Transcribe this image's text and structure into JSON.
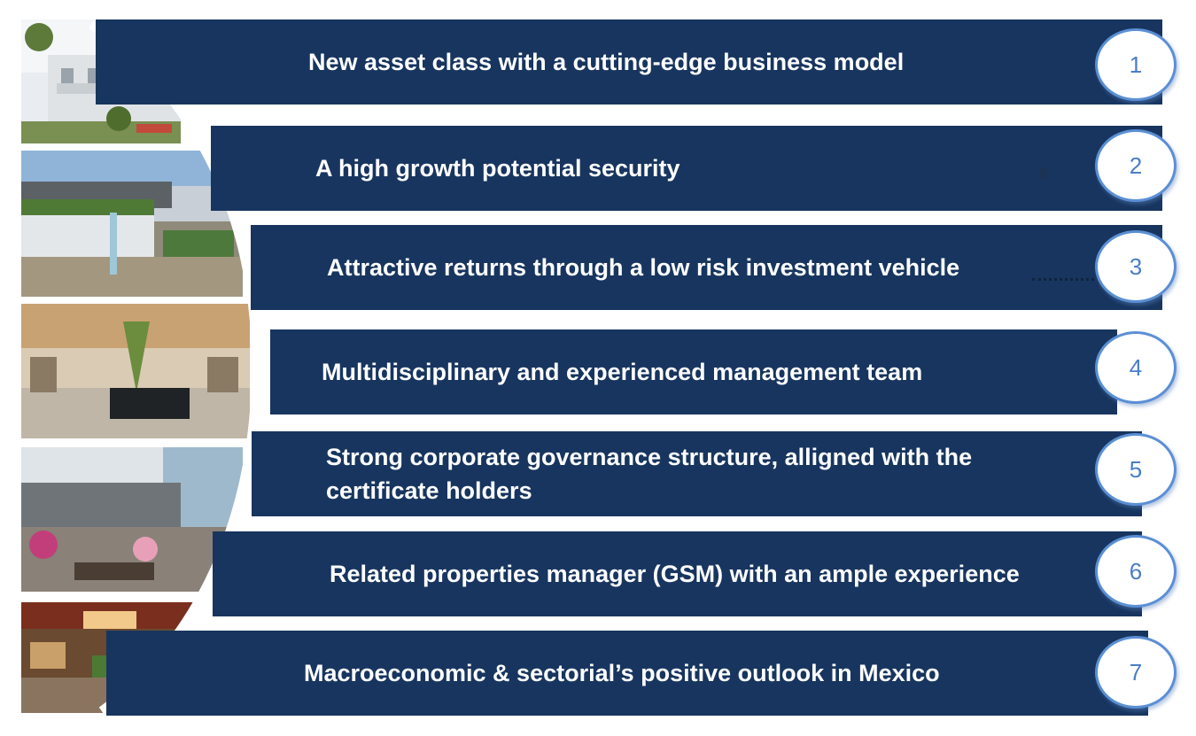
{
  "items": [
    {
      "number": "1",
      "text": "New asset class with a cutting-edge business model"
    },
    {
      "number": "2",
      "text": "A high growth potential security"
    },
    {
      "number": "3",
      "text": "Attractive returns through a low risk investment vehicle"
    },
    {
      "number": "4",
      "text": "Multidisciplinary and experienced management team"
    },
    {
      "number": "5",
      "text": "Strong corporate governance structure, alligned with the certificate holders"
    },
    {
      "number": "6",
      "text": "Related properties manager (GSM) with an ample experience"
    },
    {
      "number": "7",
      "text": "Macroeconomic & sectorial’s positive outlook in Mexico"
    }
  ],
  "stray_mark": "v",
  "colors": {
    "bar": "#17355f",
    "circle_border": "#5b8fd4",
    "number": "#4a7dc8",
    "text": "#ffffff"
  }
}
